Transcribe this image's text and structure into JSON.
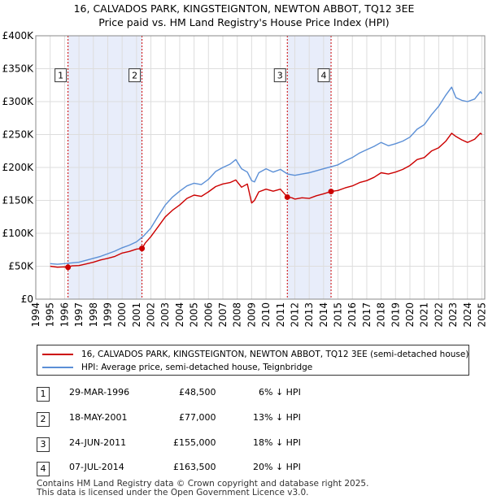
{
  "title": {
    "line1": "16, CALVADOS PARK, KINGSTEIGNTON, NEWTON ABBOT, TQ12 3EE",
    "line2": "Price paid vs. HM Land Registry's House Price Index (HPI)"
  },
  "colors": {
    "price_line": "#cc0000",
    "hpi_line": "#5b8fd6",
    "shade": "#e8edfa",
    "grid": "#dddddd",
    "marker_fill": "#cc0000"
  },
  "chart_data": {
    "type": "line",
    "title": "16, CALVADOS PARK, KINGSTEIGNTON, NEWTON ABBOT, TQ12 3EE — Price paid vs. HM Land Registry's House Price Index (HPI)",
    "xlim": [
      1994,
      2025.2
    ],
    "ylim": [
      0,
      400000
    ],
    "y_ticks": [
      0,
      50000,
      100000,
      150000,
      200000,
      250000,
      300000,
      350000,
      400000
    ],
    "y_tick_labels": [
      "£0",
      "£50K",
      "£100K",
      "£150K",
      "£200K",
      "£250K",
      "£300K",
      "£350K",
      "£400K"
    ],
    "x_ticks": [
      1994,
      1995,
      1996,
      1997,
      1998,
      1999,
      2000,
      2001,
      2002,
      2003,
      2004,
      2005,
      2006,
      2007,
      2008,
      2009,
      2010,
      2011,
      2012,
      2013,
      2014,
      2015,
      2016,
      2017,
      2018,
      2019,
      2020,
      2021,
      2022,
      2023,
      2024,
      2025
    ],
    "x_tick_labels": [
      "1994",
      "1995",
      "1996",
      "1997",
      "1998",
      "1999",
      "2000",
      "2001",
      "2002",
      "2003",
      "2004",
      "2005",
      "2006",
      "2007",
      "2008",
      "2009",
      "2010",
      "2011",
      "2012",
      "2013",
      "2014",
      "2015",
      "2016",
      "2017",
      "2018",
      "2019",
      "2020",
      "2021",
      "2022",
      "2023",
      "2024",
      "2025"
    ],
    "grid": true,
    "shaded_ranges": [
      [
        1996.24,
        2001.38
      ],
      [
        2011.48,
        2014.52
      ]
    ],
    "series": [
      {
        "name": "16, CALVADOS PARK, KINGSTEIGNTON, NEWTON ABBOT, TQ12 3EE (semi-detached house)",
        "color": "#cc0000",
        "x": [
          1995.0,
          1995.5,
          1996.0,
          1996.24,
          1996.5,
          1997.0,
          1997.5,
          1998.0,
          1998.5,
          1999.0,
          1999.5,
          2000.0,
          2000.5,
          2001.0,
          2001.38,
          2001.6,
          2002.0,
          2002.5,
          2003.0,
          2003.5,
          2004.0,
          2004.5,
          2005.0,
          2005.5,
          2006.0,
          2006.5,
          2007.0,
          2007.5,
          2007.9,
          2008.3,
          2008.7,
          2009.0,
          2009.2,
          2009.5,
          2010.0,
          2010.5,
          2011.0,
          2011.48,
          2011.8,
          2012.0,
          2012.5,
          2013.0,
          2013.5,
          2014.0,
          2014.52,
          2015.0,
          2015.5,
          2016.0,
          2016.5,
          2017.0,
          2017.5,
          2018.0,
          2018.5,
          2019.0,
          2019.5,
          2020.0,
          2020.5,
          2021.0,
          2021.5,
          2022.0,
          2022.5,
          2022.9,
          2023.2,
          2023.6,
          2024.0,
          2024.5,
          2024.9,
          2025.0
        ],
        "values": [
          50000,
          48500,
          49000,
          48500,
          50500,
          51000,
          53500,
          56000,
          59500,
          62000,
          65000,
          70000,
          72500,
          76000,
          77000,
          85000,
          95000,
          110000,
          125000,
          135000,
          143000,
          153000,
          158000,
          156000,
          163000,
          171000,
          175000,
          177000,
          181000,
          170000,
          175000,
          146000,
          150000,
          163000,
          167000,
          164000,
          167000,
          155000,
          154000,
          152000,
          154000,
          153000,
          157000,
          160000,
          163500,
          165000,
          169000,
          172000,
          177000,
          180000,
          185000,
          192000,
          190000,
          193000,
          197000,
          203000,
          212000,
          215000,
          225000,
          230000,
          240000,
          252000,
          247000,
          242000,
          238000,
          243000,
          252000,
          250000
        ]
      },
      {
        "name": "HPI: Average price, semi-detached house, Teignbridge",
        "color": "#5b8fd6",
        "x": [
          1995.0,
          1995.5,
          1996.0,
          1996.5,
          1997.0,
          1997.5,
          1998.0,
          1998.5,
          1999.0,
          1999.5,
          2000.0,
          2000.5,
          2001.0,
          2001.5,
          2002.0,
          2002.5,
          2003.0,
          2003.5,
          2004.0,
          2004.5,
          2005.0,
          2005.5,
          2006.0,
          2006.5,
          2007.0,
          2007.5,
          2007.9,
          2008.3,
          2008.7,
          2009.0,
          2009.2,
          2009.5,
          2010.0,
          2010.5,
          2011.0,
          2011.5,
          2012.0,
          2012.5,
          2013.0,
          2013.5,
          2014.0,
          2014.5,
          2015.0,
          2015.5,
          2016.0,
          2016.5,
          2017.0,
          2017.5,
          2018.0,
          2018.5,
          2019.0,
          2019.5,
          2020.0,
          2020.5,
          2021.0,
          2021.5,
          2022.0,
          2022.5,
          2022.9,
          2023.2,
          2023.6,
          2024.0,
          2024.5,
          2024.9,
          2025.0
        ],
        "values": [
          54000,
          53000,
          54000,
          55000,
          56000,
          59000,
          62000,
          65000,
          69000,
          73000,
          78000,
          82000,
          87000,
          96000,
          108000,
          126000,
          143000,
          155000,
          164000,
          172000,
          176000,
          174000,
          182000,
          194000,
          200000,
          205000,
          212000,
          198000,
          193000,
          180000,
          178000,
          192000,
          198000,
          193000,
          197000,
          190000,
          188000,
          190000,
          192000,
          195000,
          198000,
          201000,
          204000,
          210000,
          215000,
          222000,
          227000,
          232000,
          238000,
          233000,
          236000,
          240000,
          246000,
          258000,
          265000,
          280000,
          293000,
          310000,
          322000,
          306000,
          302000,
          300000,
          304000,
          315000,
          312000
        ]
      }
    ],
    "transactions": [
      {
        "label": "1",
        "x": 1996.24,
        "value": 48500
      },
      {
        "label": "2",
        "x": 2001.38,
        "value": 77000
      },
      {
        "label": "3",
        "x": 2011.48,
        "value": 155000
      },
      {
        "label": "4",
        "x": 2014.52,
        "value": 163500
      }
    ],
    "marker_label_value": 340000
  },
  "legend": {
    "price_label": "16, CALVADOS PARK, KINGSTEIGNTON, NEWTON ABBOT, TQ12 3EE (semi-detached house)",
    "hpi_label": "HPI: Average price, semi-detached house, Teignbridge"
  },
  "table": [
    {
      "num": "1",
      "date": "29-MAR-1996",
      "price": "£48,500",
      "hpi": "6% ↓ HPI"
    },
    {
      "num": "2",
      "date": "18-MAY-2001",
      "price": "£77,000",
      "hpi": "13% ↓ HPI"
    },
    {
      "num": "3",
      "date": "24-JUN-2011",
      "price": "£155,000",
      "hpi": "18% ↓ HPI"
    },
    {
      "num": "4",
      "date": "07-JUL-2014",
      "price": "£163,500",
      "hpi": "20% ↓ HPI"
    }
  ],
  "footer": {
    "line1": "Contains HM Land Registry data © Crown copyright and database right 2025.",
    "line2": "This data is licensed under the Open Government Licence v3.0."
  }
}
